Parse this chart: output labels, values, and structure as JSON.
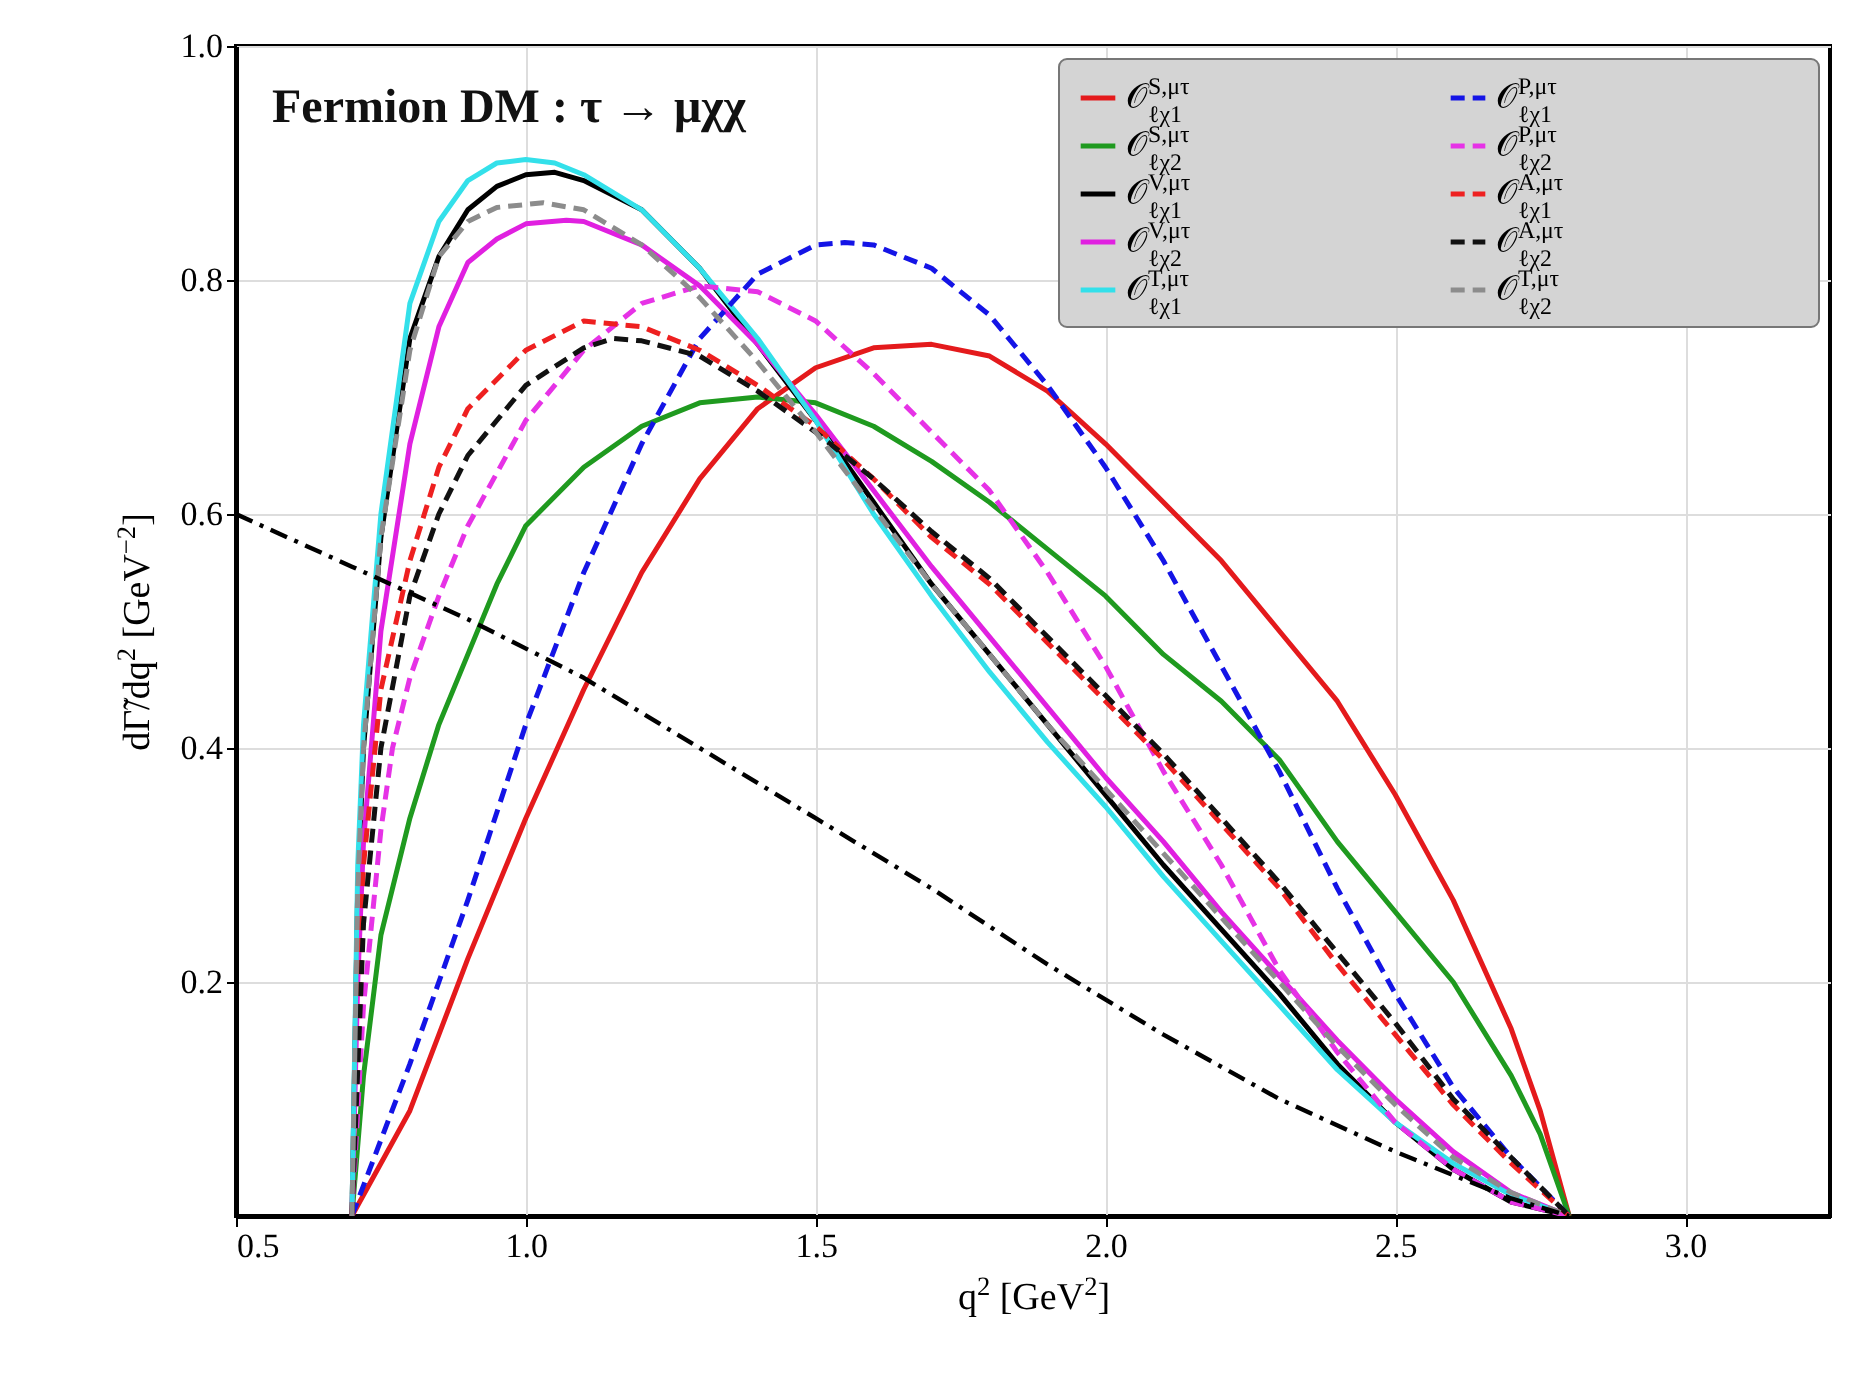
{
  "chart_data": {
    "type": "line",
    "title": "Fermion DM : τ → μχχ",
    "xlabel": "q$^{2}$ [GeV$^{2}$]",
    "ylabel": "dΓ̃/dq$^{2}$ [GeV$^{−2}$]",
    "xlim": [
      0.5,
      3.25
    ],
    "ylim": [
      0,
      1
    ],
    "xticks": [
      0.5,
      {
        "value": 1,
        "label": "1.0"
      },
      1.5,
      {
        "value": 2,
        "label": "2.0"
      },
      2.5,
      {
        "value": 3,
        "label": "3.0"
      }
    ],
    "yticks": [
      {
        "value": 0.2,
        "label": "0.2"
      },
      {
        "value": 0.4,
        "label": "0.4"
      },
      {
        "value": 0.6,
        "label": "0.6"
      },
      {
        "value": 0.8,
        "label": "0.8"
      },
      {
        "value": 1,
        "label": "1.0"
      }
    ],
    "grid": true,
    "legend": "top right",
    "series": [
      {
        "name": "𝒪$^{S,μτ}$$_{ℓχ1}$",
        "color": "#e41a1c",
        "line_style": "solid",
        "x": [
          0.7,
          0.8,
          0.9,
          1.0,
          1.1,
          1.2,
          1.3,
          1.4,
          1.5,
          1.6,
          1.7,
          1.8,
          1.9,
          2.0,
          2.1,
          2.2,
          2.3,
          2.4,
          2.5,
          2.6,
          2.7,
          2.75,
          2.8
        ],
        "values": [
          0,
          0.09,
          0.22,
          0.34,
          0.45,
          0.55,
          0.63,
          0.69,
          0.725,
          0.742,
          0.745,
          0.735,
          0.705,
          0.66,
          0.61,
          0.56,
          0.5,
          0.44,
          0.36,
          0.27,
          0.16,
          0.09,
          0
        ]
      },
      {
        "name": "𝒪$^{S,μτ}$$_{ℓχ2}$",
        "color": "#1f9a1f",
        "line_style": "solid",
        "x": [
          0.7,
          0.72,
          0.75,
          0.8,
          0.85,
          0.9,
          0.95,
          1.0,
          1.1,
          1.2,
          1.3,
          1.4,
          1.5,
          1.6,
          1.7,
          1.8,
          1.9,
          2.0,
          2.1,
          2.2,
          2.3,
          2.4,
          2.5,
          2.6,
          2.7,
          2.75,
          2.8
        ],
        "values": [
          0,
          0.12,
          0.24,
          0.34,
          0.42,
          0.48,
          0.54,
          0.59,
          0.64,
          0.675,
          0.695,
          0.7,
          0.695,
          0.675,
          0.645,
          0.61,
          0.57,
          0.53,
          0.48,
          0.44,
          0.39,
          0.32,
          0.26,
          0.2,
          0.12,
          0.07,
          0
        ]
      },
      {
        "name": "𝒪$^{V,μτ}$$_{ℓχ1}$",
        "color": "#000000",
        "line_style": "solid",
        "x": [
          0.7,
          0.71,
          0.72,
          0.75,
          0.8,
          0.85,
          0.9,
          0.95,
          1.0,
          1.05,
          1.1,
          1.2,
          1.3,
          1.4,
          1.5,
          1.6,
          1.7,
          1.8,
          1.9,
          2.0,
          2.1,
          2.2,
          2.3,
          2.4,
          2.5,
          2.6,
          2.7,
          2.8
        ],
        "values": [
          0,
          0.28,
          0.4,
          0.58,
          0.75,
          0.82,
          0.86,
          0.88,
          0.89,
          0.892,
          0.885,
          0.86,
          0.81,
          0.745,
          0.68,
          0.61,
          0.54,
          0.48,
          0.42,
          0.36,
          0.3,
          0.245,
          0.19,
          0.13,
          0.08,
          0.04,
          0.012,
          0
        ]
      },
      {
        "name": "𝒪$^{V,μτ}$$_{ℓχ2}$",
        "color": "#e020e0",
        "line_style": "solid",
        "x": [
          0.7,
          0.71,
          0.72,
          0.75,
          0.8,
          0.85,
          0.9,
          0.95,
          1.0,
          1.07,
          1.1,
          1.2,
          1.3,
          1.4,
          1.5,
          1.6,
          1.7,
          1.8,
          1.9,
          2.0,
          2.1,
          2.2,
          2.3,
          2.4,
          2.5,
          2.6,
          2.7,
          2.8
        ],
        "values": [
          0,
          0.2,
          0.32,
          0.5,
          0.66,
          0.76,
          0.815,
          0.835,
          0.848,
          0.851,
          0.85,
          0.83,
          0.795,
          0.745,
          0.685,
          0.62,
          0.555,
          0.495,
          0.435,
          0.375,
          0.32,
          0.26,
          0.205,
          0.15,
          0.1,
          0.055,
          0.02,
          0
        ]
      },
      {
        "name": "𝒪$^{T,μτ}$$_{ℓχ1}$",
        "color": "#33e0ea",
        "line_style": "solid",
        "x": [
          0.7,
          0.71,
          0.72,
          0.75,
          0.8,
          0.85,
          0.9,
          0.95,
          1.0,
          1.05,
          1.1,
          1.2,
          1.3,
          1.4,
          1.5,
          1.6,
          1.7,
          1.8,
          1.9,
          2.0,
          2.1,
          2.2,
          2.3,
          2.4,
          2.5,
          2.6,
          2.7,
          2.8
        ],
        "values": [
          0,
          0.3,
          0.42,
          0.6,
          0.78,
          0.85,
          0.885,
          0.9,
          0.903,
          0.9,
          0.89,
          0.86,
          0.81,
          0.75,
          0.68,
          0.6,
          0.53,
          0.465,
          0.405,
          0.35,
          0.29,
          0.235,
          0.18,
          0.125,
          0.08,
          0.045,
          0.018,
          0
        ]
      },
      {
        "name": "𝒪$^{P,μτ}$$_{ℓχ1}$",
        "color": "#1414e6",
        "line_style": "dashed",
        "x": [
          0.7,
          0.8,
          0.9,
          1.0,
          1.1,
          1.2,
          1.3,
          1.4,
          1.5,
          1.55,
          1.6,
          1.7,
          1.8,
          1.9,
          2.0,
          2.1,
          2.2,
          2.3,
          2.4,
          2.5,
          2.6,
          2.7,
          2.8
        ],
        "values": [
          0,
          0.13,
          0.27,
          0.42,
          0.55,
          0.66,
          0.75,
          0.805,
          0.83,
          0.832,
          0.83,
          0.81,
          0.77,
          0.71,
          0.64,
          0.56,
          0.47,
          0.38,
          0.28,
          0.19,
          0.11,
          0.05,
          0
        ]
      },
      {
        "name": "𝒪$^{P,μτ}$$_{ℓχ2}$",
        "color": "#e632e6",
        "line_style": "dashed",
        "x": [
          0.7,
          0.72,
          0.75,
          0.77,
          0.8,
          0.85,
          0.9,
          1.0,
          1.1,
          1.2,
          1.3,
          1.4,
          1.5,
          1.6,
          1.7,
          1.8,
          1.9,
          2.0,
          2.1,
          2.2,
          2.3,
          2.4,
          2.5,
          2.6,
          2.7,
          2.8
        ],
        "values": [
          0,
          0.18,
          0.33,
          0.4,
          0.46,
          0.53,
          0.59,
          0.68,
          0.74,
          0.78,
          0.795,
          0.79,
          0.765,
          0.72,
          0.67,
          0.62,
          0.55,
          0.47,
          0.38,
          0.3,
          0.21,
          0.14,
          0.08,
          0.04,
          0.012,
          0
        ]
      },
      {
        "name": "𝒪$^{A,μτ}$$_{ℓχ1}$",
        "color": "#ee2020",
        "line_style": "dashed",
        "x": [
          0.7,
          0.72,
          0.75,
          0.8,
          0.85,
          0.9,
          1.0,
          1.1,
          1.2,
          1.3,
          1.4,
          1.5,
          1.6,
          1.7,
          1.8,
          1.9,
          2.0,
          2.1,
          2.2,
          2.3,
          2.4,
          2.5,
          2.6,
          2.7,
          2.8
        ],
        "values": [
          0,
          0.3,
          0.45,
          0.56,
          0.64,
          0.69,
          0.74,
          0.765,
          0.76,
          0.74,
          0.71,
          0.675,
          0.63,
          0.58,
          0.54,
          0.49,
          0.44,
          0.39,
          0.335,
          0.28,
          0.215,
          0.155,
          0.095,
          0.045,
          0
        ]
      },
      {
        "name": "𝒪$^{A,μτ}$$_{ℓχ2}$",
        "color": "#111111",
        "line_style": "dashed",
        "x": [
          0.7,
          0.72,
          0.75,
          0.8,
          0.85,
          0.9,
          1.0,
          1.1,
          1.15,
          1.2,
          1.3,
          1.4,
          1.5,
          1.6,
          1.7,
          1.8,
          1.9,
          2.0,
          2.1,
          2.2,
          2.3,
          2.4,
          2.5,
          2.6,
          2.7,
          2.8
        ],
        "values": [
          0,
          0.25,
          0.4,
          0.53,
          0.6,
          0.65,
          0.71,
          0.742,
          0.75,
          0.748,
          0.735,
          0.705,
          0.67,
          0.63,
          0.585,
          0.545,
          0.495,
          0.445,
          0.395,
          0.34,
          0.285,
          0.225,
          0.165,
          0.1,
          0.05,
          0
        ]
      },
      {
        "name": "𝒪$^{T,μτ}$$_{ℓχ2}$",
        "color": "#8c8c8c",
        "line_style": "dashed",
        "x": [
          0.7,
          0.71,
          0.72,
          0.75,
          0.8,
          0.85,
          0.9,
          0.95,
          1.03,
          1.1,
          1.2,
          1.3,
          1.4,
          1.5,
          1.6,
          1.7,
          1.8,
          1.9,
          2.0,
          2.1,
          2.2,
          2.3,
          2.4,
          2.5,
          2.6,
          2.7,
          2.8
        ],
        "values": [
          0,
          0.28,
          0.4,
          0.58,
          0.74,
          0.82,
          0.85,
          0.862,
          0.866,
          0.86,
          0.83,
          0.785,
          0.73,
          0.67,
          0.605,
          0.54,
          0.48,
          0.42,
          0.365,
          0.31,
          0.255,
          0.2,
          0.145,
          0.095,
          0.05,
          0.02,
          0
        ]
      },
      {
        "color": "#000000",
        "line_style": "dashdot",
        "x": [
          0.5,
          0.7,
          0.9,
          1.1,
          1.3,
          1.5,
          1.7,
          1.9,
          2.1,
          2.3,
          2.5,
          2.7,
          2.8
        ],
        "values": [
          0.6,
          0.555,
          0.51,
          0.46,
          0.4,
          0.34,
          0.28,
          0.215,
          0.155,
          0.1,
          0.055,
          0.015,
          0
        ]
      }
    ]
  }
}
